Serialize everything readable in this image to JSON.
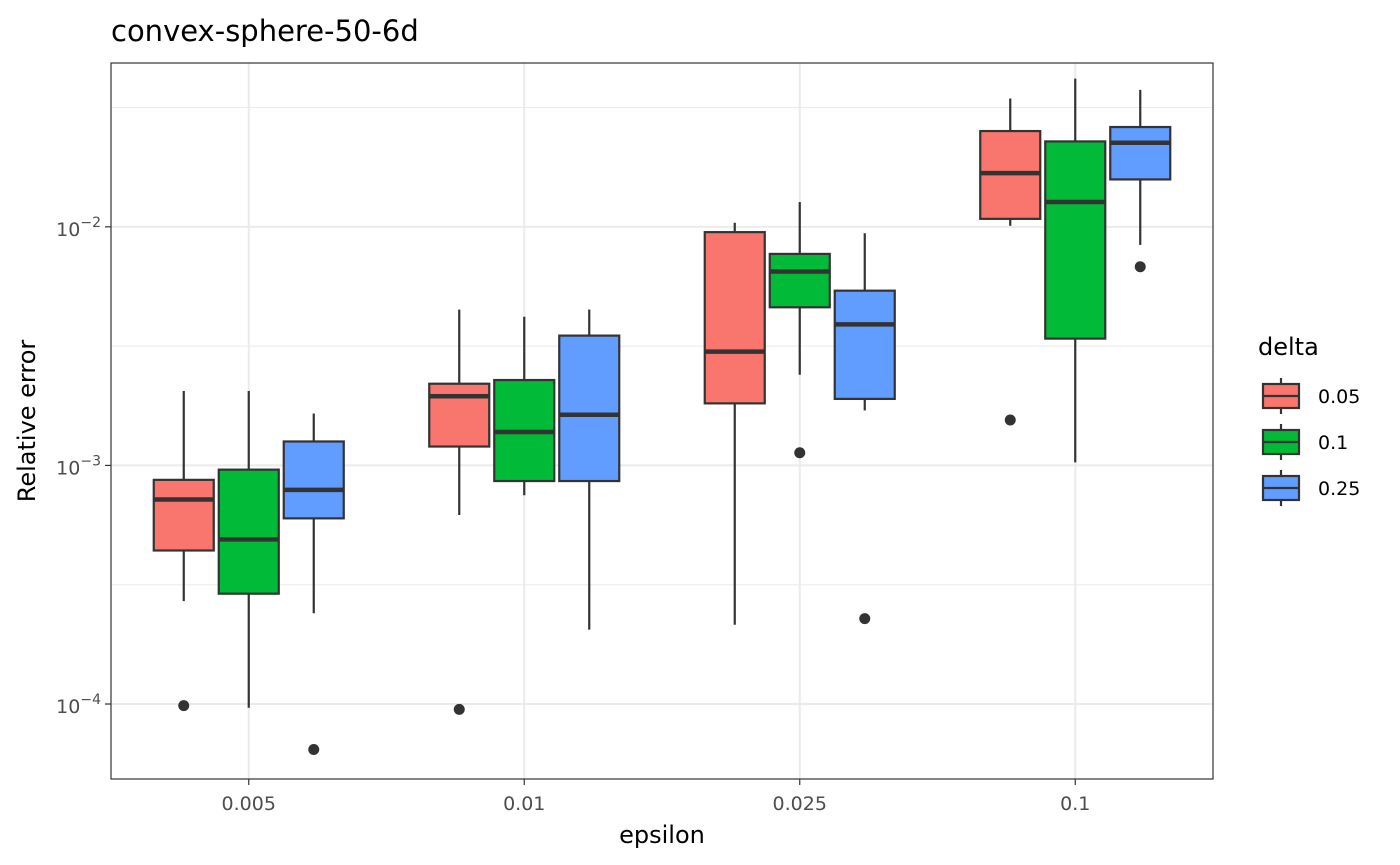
{
  "chart_data": {
    "type": "boxplot",
    "title": "convex-sphere-50-6d",
    "xlabel": "epsilon",
    "ylabel": "Relative error",
    "y_scale": "log10",
    "ylim": [
      4.85e-05,
      0.0486
    ],
    "y_ticks": [
      {
        "value": 0.0001,
        "base": "10",
        "exp": "−4"
      },
      {
        "value": 0.001,
        "base": "10",
        "exp": "−3"
      },
      {
        "value": 0.01,
        "base": "10",
        "exp": "−2"
      }
    ],
    "categories": [
      "0.005",
      "0.01",
      "0.025",
      "0.1"
    ],
    "grid": true,
    "legend": {
      "title": "delta",
      "position": "right",
      "entries": [
        {
          "label": "0.05",
          "color": "#F8766D"
        },
        {
          "label": "0.1",
          "color": "#00BA38"
        },
        {
          "label": "0.25",
          "color": "#619CFF"
        }
      ]
    },
    "series": [
      {
        "name": "0.05",
        "color": "#F8766D",
        "boxes": [
          {
            "min": 0.00027,
            "q1": 0.00044,
            "median": 0.00072,
            "q3": 0.00087,
            "max": 0.00205,
            "outliers": [
              9.85e-05
            ]
          },
          {
            "min": 0.00062,
            "q1": 0.0012,
            "median": 0.00195,
            "q3": 0.0022,
            "max": 0.0045,
            "outliers": [
              9.5e-05
            ]
          },
          {
            "min": 0.000215,
            "q1": 0.00182,
            "median": 0.003,
            "q3": 0.0095,
            "max": 0.0104,
            "outliers": []
          },
          {
            "min": 0.0101,
            "q1": 0.0108,
            "median": 0.0168,
            "q3": 0.0252,
            "max": 0.0345,
            "outliers": [
              0.00155
            ]
          }
        ]
      },
      {
        "name": "0.1",
        "color": "#00BA38",
        "boxes": [
          {
            "min": 9.65e-05,
            "q1": 0.00029,
            "median": 0.00049,
            "q3": 0.00096,
            "max": 0.00205,
            "outliers": []
          },
          {
            "min": 0.00075,
            "q1": 0.00086,
            "median": 0.00138,
            "q3": 0.00228,
            "max": 0.0042,
            "outliers": []
          },
          {
            "min": 0.0024,
            "q1": 0.0046,
            "median": 0.0065,
            "q3": 0.0077,
            "max": 0.0127,
            "outliers": [
              0.00113
            ]
          },
          {
            "min": 0.00103,
            "q1": 0.0034,
            "median": 0.0127,
            "q3": 0.0228,
            "max": 0.0418,
            "outliers": []
          }
        ]
      },
      {
        "name": "0.25",
        "color": "#619CFF",
        "boxes": [
          {
            "min": 0.00024,
            "q1": 0.0006,
            "median": 0.00079,
            "q3": 0.00126,
            "max": 0.00165,
            "outliers": [
              6.45e-05
            ]
          },
          {
            "min": 0.000205,
            "q1": 0.00086,
            "median": 0.00163,
            "q3": 0.0035,
            "max": 0.0045,
            "outliers": []
          },
          {
            "min": 0.0017,
            "q1": 0.0019,
            "median": 0.0039,
            "q3": 0.0054,
            "max": 0.0094,
            "outliers": [
              0.000228
            ]
          },
          {
            "min": 0.0084,
            "q1": 0.0158,
            "median": 0.0225,
            "q3": 0.0262,
            "max": 0.0375,
            "outliers": [
              0.0068
            ]
          }
        ]
      }
    ]
  }
}
